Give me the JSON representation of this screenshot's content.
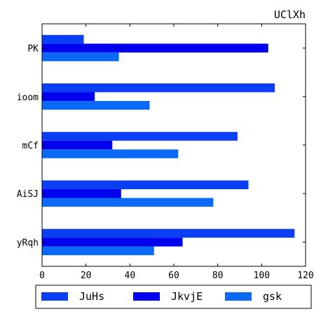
{
  "chart_data": {
    "type": "bar",
    "orientation": "horizontal",
    "title": "UClXh",
    "xlabel": "",
    "ylabel": "",
    "categories": [
      "PK",
      "ioom",
      "mCf",
      "AiSJ",
      "yRqh"
    ],
    "series": [
      {
        "name": "JuHs",
        "color": "#0a3ff5",
        "values": [
          19,
          106,
          89,
          94,
          115
        ]
      },
      {
        "name": "JkvjE",
        "color": "#0000ee",
        "values": [
          103,
          24,
          32,
          36,
          64
        ]
      },
      {
        "name": "gsk",
        "color": "#0a6af5",
        "values": [
          35,
          49,
          62,
          78,
          51
        ]
      }
    ],
    "xlim": [
      0,
      120
    ],
    "xticks": [
      0,
      20,
      40,
      60,
      80,
      100,
      120
    ],
    "grid": false,
    "legend_position": "bottom"
  }
}
